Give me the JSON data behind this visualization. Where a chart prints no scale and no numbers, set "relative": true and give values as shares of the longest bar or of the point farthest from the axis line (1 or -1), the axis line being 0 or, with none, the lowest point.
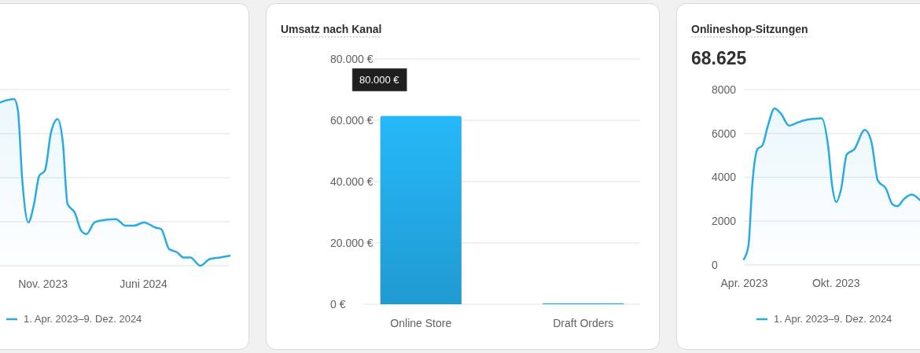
{
  "chart_data": [
    {
      "type": "area",
      "relative": true,
      "grid": "y",
      "legend": "bottom",
      "xlim": [
        "2023-08-03",
        "2024-12-01"
      ],
      "xticks": [
        {
          "value": "2023-11-01",
          "label": "Nov. 2023"
        },
        {
          "value": "2024-06-01",
          "label": "Juni 2024"
        }
      ],
      "series": [
        {
          "name": "1. Apr. 2023–9. Dez. 2024",
          "color": "#29abe2",
          "x": [
            "2023-08-03",
            "2023-09-02",
            "2023-09-10",
            "2023-09-19",
            "2023-10-02",
            "2023-10-14",
            "2023-10-25",
            "2023-11-06",
            "2023-11-19",
            "2023-12-03",
            "2023-12-14",
            "2023-12-24",
            "2024-01-08",
            "2024-01-22",
            "2024-02-02",
            "2024-02-19",
            "2024-03-01",
            "2024-04-04",
            "2024-04-25",
            "2024-05-12",
            "2024-06-03",
            "2024-06-26",
            "2024-07-09",
            "2024-07-26",
            "2024-08-12",
            "2024-08-25",
            "2024-09-09",
            "2024-09-30",
            "2024-10-20",
            "2024-11-11",
            "2024-12-01"
          ],
          "values": [
            0.98,
            1.0,
            0.93,
            0.52,
            0.26,
            0.37,
            0.54,
            0.57,
            0.8,
            0.88,
            0.74,
            0.37,
            0.32,
            0.21,
            0.19,
            0.26,
            0.27,
            0.28,
            0.24,
            0.24,
            0.26,
            0.23,
            0.22,
            0.1,
            0.08,
            0.05,
            0.05,
            0.0,
            0.04,
            0.05,
            0.06
          ]
        }
      ]
    },
    {
      "type": "bar",
      "title": "Umsatz nach Kanal",
      "categories": [
        "Online Store",
        "Draft Orders"
      ],
      "values": [
        61400,
        300
      ],
      "color": "#22a5e0",
      "ylim": [
        0,
        80000
      ],
      "yticks": [
        {
          "value": 0,
          "label": "0 €"
        },
        {
          "value": 20000,
          "label": "20.000 €"
        },
        {
          "value": 40000,
          "label": "40.000 €"
        },
        {
          "value": 60000,
          "label": "60.000 €"
        },
        {
          "value": 80000,
          "label": "80.000 €"
        }
      ],
      "grid": "y",
      "annotations": [
        "80.000 €"
      ]
    },
    {
      "type": "area",
      "title": "Onlineshop-Sitzungen",
      "subtitle": "68.625",
      "grid": "y",
      "legend": "bottom",
      "xlim": [
        "2023-04-01",
        "2024-03-17"
      ],
      "xticks": [
        {
          "value": "2023-04-01",
          "label": "Apr. 2023"
        },
        {
          "value": "2023-10-01",
          "label": "Okt. 2023"
        }
      ],
      "ylim": [
        0,
        8000
      ],
      "yticks": [
        0,
        2000,
        4000,
        6000,
        8000
      ],
      "series": [
        {
          "name": "1. Apr. 2023–9. Dez. 2024",
          "color": "#29abe2",
          "x": [
            "2023-04-01",
            "2023-04-10",
            "2023-04-18",
            "2023-04-28",
            "2023-05-08",
            "2023-05-19",
            "2023-06-01",
            "2023-06-14",
            "2023-06-30",
            "2023-07-15",
            "2023-07-31",
            "2023-08-16",
            "2023-09-03",
            "2023-09-16",
            "2023-09-24",
            "2023-10-02",
            "2023-10-12",
            "2023-10-23",
            "2023-11-07",
            "2023-11-28",
            "2023-12-11",
            "2023-12-24",
            "2024-01-09",
            "2024-01-22",
            "2024-02-01",
            "2024-02-14",
            "2024-03-01",
            "2024-03-17"
          ],
          "values": [
            260,
            860,
            3730,
            5280,
            5460,
            6360,
            7140,
            6900,
            6360,
            6480,
            6600,
            6660,
            6690,
            5400,
            3610,
            2870,
            3490,
            5040,
            5280,
            6160,
            5640,
            3850,
            3490,
            2770,
            2680,
            3010,
            3210,
            2950
          ]
        }
      ]
    }
  ]
}
